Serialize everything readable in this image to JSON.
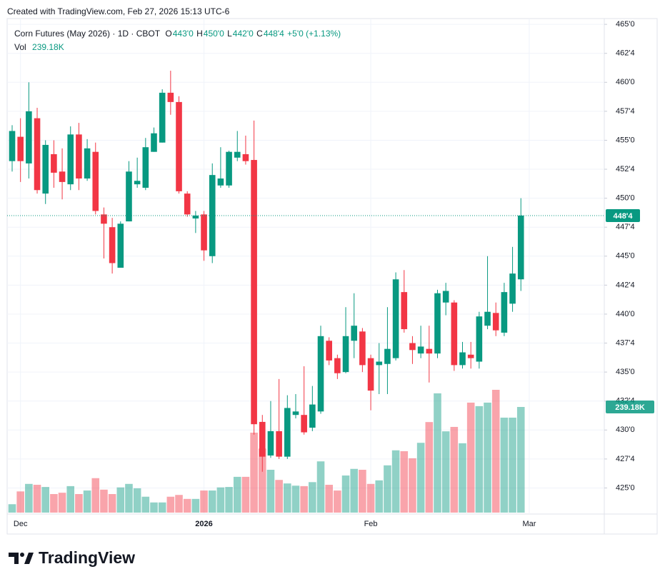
{
  "header": {
    "created": "Created with TradingView.com, Feb 27, 2026 15:13 UTC-6"
  },
  "chart_data": {
    "type": "candlestick",
    "title": "Corn Futures (May 2026) · 1D · CBOT",
    "ohlc_letters": [
      "O",
      "H",
      "L",
      "C"
    ],
    "ohlc_labels": [
      "443'0",
      "450'0",
      "442'0",
      "448'4"
    ],
    "change_label": "+5'0 (+1.13%)",
    "volume_title": "Vol",
    "volume_label": "239.18K",
    "last_price_label": "448'4",
    "up_color": "#089981",
    "down_color": "#f23645",
    "open": [
      453.2,
      455.3,
      453,
      456.9,
      450.4,
      453.8,
      452.3,
      451.2,
      455.5,
      451.7,
      454,
      448.6,
      447.5,
      444,
      448,
      451.2,
      450.9,
      454,
      454.8,
      459.1,
      458.3,
      450.4,
      448.25,
      448.6,
      445,
      451.1,
      451.1,
      453.5,
      453.8,
      453.3,
      430.7,
      427.8,
      429.9,
      427.7,
      431.3,
      431.3,
      430.2,
      431.6,
      437.7,
      436.2,
      435,
      437.7,
      438.5,
      436.2,
      435.6,
      435.7,
      436.2,
      441.9,
      437.5,
      436.6,
      437,
      436.6,
      441,
      441,
      435.6,
      436.5,
      435.9,
      439,
      440.1,
      438.4,
      440.9,
      443
    ],
    "high": [
      456.3,
      456.9,
      460,
      457.8,
      455,
      455,
      454.3,
      456.2,
      456.5,
      455.1,
      454.8,
      449.2,
      448.3,
      448,
      453.2,
      453.5,
      455.2,
      456.1,
      459.4,
      461,
      458.8,
      450.6,
      448.9,
      448.9,
      453,
      454.4,
      454.1,
      455.8,
      455.4,
      456.7,
      431.3,
      432.5,
      434.4,
      433,
      433.1,
      435.5,
      433.8,
      439,
      438,
      436.5,
      440.6,
      441.8,
      438.8,
      436.5,
      437.5,
      440.6,
      443.6,
      443.8,
      438.1,
      439,
      439,
      442.1,
      442.7,
      441.2,
      437.6,
      437.6,
      440.2,
      445,
      441,
      442.7,
      445.8,
      450
    ],
    "low": [
      452.3,
      451.4,
      451.7,
      450.4,
      449.5,
      450.9,
      449.9,
      450.7,
      450.7,
      451.5,
      448.6,
      444.8,
      443.5,
      444,
      448,
      450.9,
      450.7,
      454,
      454.8,
      457.2,
      450.4,
      448.4,
      447,
      444.6,
      444.4,
      450.9,
      450.9,
      453.2,
      452.9,
      429.6,
      426.4,
      427.6,
      427.5,
      427.5,
      431,
      429.6,
      429.9,
      431.4,
      435.6,
      434.4,
      434.9,
      436.2,
      435,
      431.7,
      433.1,
      433.1,
      436,
      438.4,
      435.7,
      436.2,
      434.1,
      436.2,
      439.9,
      435.1,
      435.3,
      435.3,
      435.3,
      438.7,
      438.1,
      438.1,
      440.2,
      442
    ],
    "close": [
      455.8,
      453.2,
      457.5,
      450.7,
      454.6,
      452.2,
      451.4,
      455.5,
      451.7,
      454.3,
      448.9,
      447.8,
      444.4,
      447.8,
      452.3,
      451.5,
      454.4,
      455.6,
      459.1,
      458.3,
      450.6,
      448.6,
      448.5,
      445.5,
      452,
      451.7,
      454,
      454,
      453.2,
      430.5,
      427.7,
      429.9,
      427.7,
      431.9,
      431.6,
      429.8,
      432.2,
      438.1,
      436,
      434.9,
      438.1,
      439,
      435.6,
      433.4,
      435.9,
      437,
      443,
      438.7,
      436.9,
      437.2,
      436.6,
      441.8,
      442,
      435.6,
      436.7,
      436.2,
      439.8,
      440.2,
      438.6,
      441.9,
      443.5,
      448.5
    ],
    "volume": [
      19000,
      48000,
      65000,
      63000,
      58000,
      42000,
      45000,
      60000,
      42000,
      50000,
      78000,
      52000,
      42000,
      57000,
      65000,
      55000,
      36000,
      23000,
      23000,
      36000,
      40000,
      31000,
      31000,
      50000,
      50000,
      57000,
      58000,
      81000,
      81000,
      181000,
      145000,
      97000,
      74000,
      66000,
      61000,
      60000,
      69000,
      116000,
      63000,
      50000,
      84000,
      99000,
      97000,
      65000,
      73000,
      107000,
      141000,
      139000,
      123000,
      158000,
      205000,
      270000,
      184000,
      194000,
      157000,
      249000,
      241000,
      249000,
      278000,
      215000,
      215000,
      239180
    ],
    "xlim": [
      -0.6,
      71
    ],
    "xticks": [
      {
        "value": 1,
        "label": "Dec"
      },
      {
        "value": 23,
        "label": "2026"
      },
      {
        "value": 43,
        "label": "Feb"
      },
      {
        "value": 62,
        "label": "Mar"
      }
    ],
    "ylim": [
      422.75,
      465.5
    ],
    "yticks": [
      {
        "value": 425,
        "label": "425'0"
      },
      {
        "value": 427.5,
        "label": "427'4"
      },
      {
        "value": 430,
        "label": "430'0"
      },
      {
        "value": 432.5,
        "label": "432'4"
      },
      {
        "value": 435,
        "label": "435'0"
      },
      {
        "value": 437.5,
        "label": "437'4"
      },
      {
        "value": 440,
        "label": "440'0"
      },
      {
        "value": 442.5,
        "label": "442'4"
      },
      {
        "value": 445,
        "label": "445'0"
      },
      {
        "value": 447.5,
        "label": "447'4"
      },
      {
        "value": 450,
        "label": "450'0"
      },
      {
        "value": 452.5,
        "label": "452'4"
      },
      {
        "value": 455,
        "label": "455'0"
      },
      {
        "value": 457.5,
        "label": "457'4"
      },
      {
        "value": 460,
        "label": "460'0"
      },
      {
        "value": 462.5,
        "label": "462'4"
      },
      {
        "value": 465,
        "label": "465'0"
      }
    ],
    "grid": true
  },
  "footer": {
    "brand": "TradingView"
  }
}
